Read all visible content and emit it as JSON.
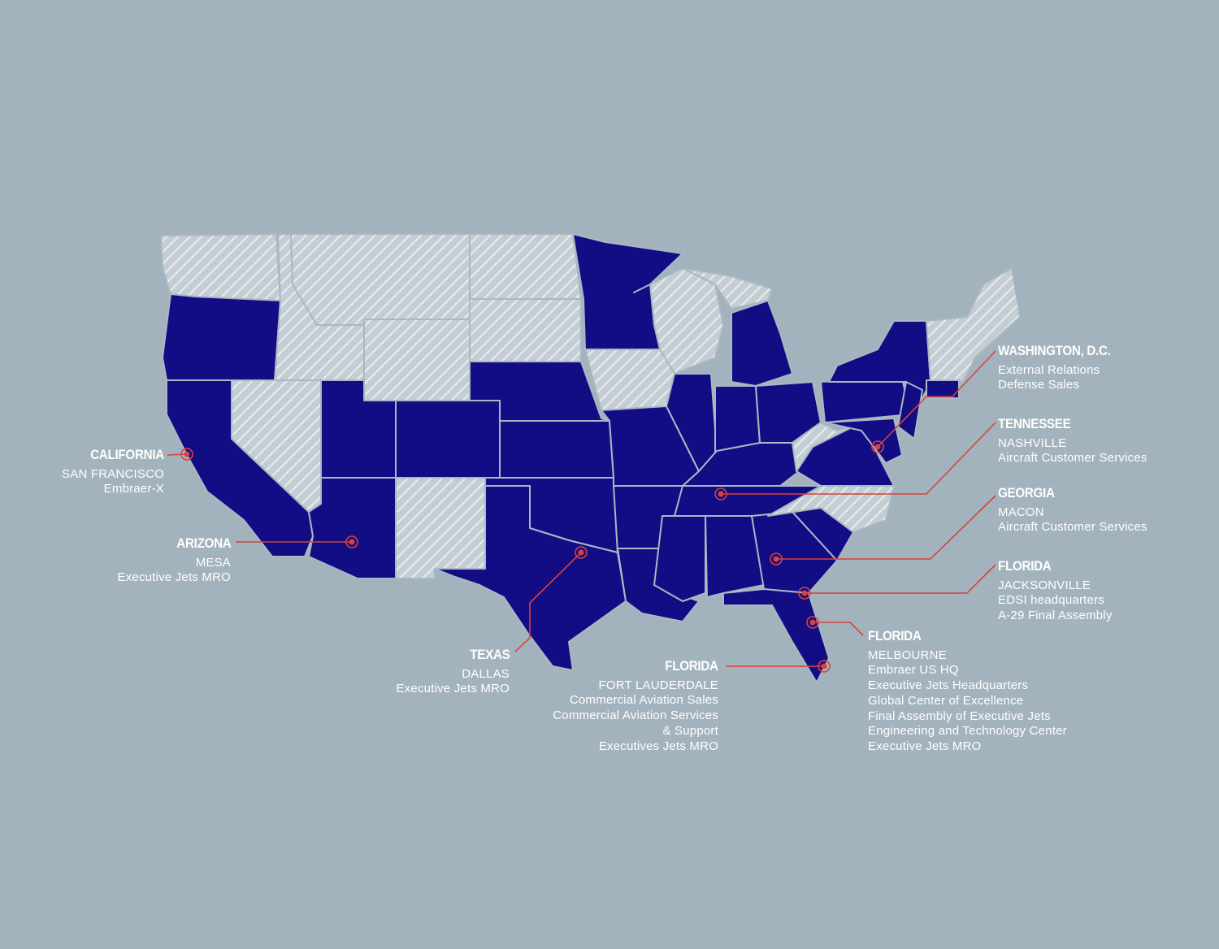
{
  "colors": {
    "background": "#a3b3bd",
    "highlighted_state": "#120d85",
    "other_state": "#c7d0d6",
    "marker": "#d8413d"
  },
  "highlighted_states": [
    "OR",
    "CA",
    "UT",
    "AZ",
    "CO",
    "NE",
    "KS",
    "OK",
    "TX",
    "MN",
    "MO",
    "AR",
    "LA",
    "IL",
    "IN",
    "OH",
    "MI",
    "KY",
    "TN",
    "MS",
    "AL",
    "GA",
    "SC",
    "FL",
    "PA",
    "NY",
    "NJ",
    "MD",
    "DE",
    "VA",
    "CT"
  ],
  "locations": [
    {
      "state": "CALIFORNIA",
      "city": "SAN FRANCISCO",
      "lines": [
        "Embraer-X"
      ]
    },
    {
      "state": "ARIZONA",
      "city": "MESA",
      "lines": [
        "Executive Jets MRO"
      ]
    },
    {
      "state": "TEXAS",
      "city": "DALLAS",
      "lines": [
        "Executive Jets MRO"
      ]
    },
    {
      "state": "FLORIDA",
      "city": "FORT LAUDERDALE",
      "lines": [
        "Commercial Aviation Sales",
        "Commercial Aviation Services",
        "& Support",
        "Executives Jets MRO"
      ]
    },
    {
      "state": "FLORIDA",
      "city": "MELBOURNE",
      "lines": [
        "Embraer US HQ",
        "Executive Jets Headquarters",
        "Global Center of Excellence",
        "Final Assembly of Executive Jets",
        "Engineering and Technology Center",
        "Executive Jets MRO"
      ]
    },
    {
      "state": "WASHINGTON, D.C.",
      "city": "External Relations",
      "lines": [
        "Defense Sales"
      ]
    },
    {
      "state": "TENNESSEE",
      "city": "NASHVILLE",
      "lines": [
        "Aircraft Customer Services"
      ]
    },
    {
      "state": "GEORGIA",
      "city": "MACON",
      "lines": [
        "Aircraft Customer Services"
      ]
    },
    {
      "state": "FLORIDA",
      "city": "JACKSONVILLE",
      "lines": [
        "EDSI headquarters",
        "A-29 Final Assembly"
      ]
    }
  ]
}
